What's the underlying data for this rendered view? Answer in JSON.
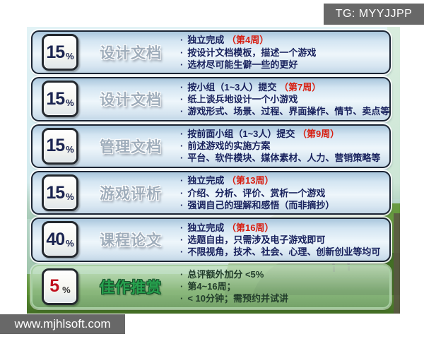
{
  "watermarks": {
    "top_right": "TG: MYYJJPP",
    "bottom_left": "www.mjhlsoft.com"
  },
  "bullet_char": "·",
  "colors": {
    "row_border": "#1b2433",
    "row_fill_top": "#a9c6dc",
    "row_fill_mid": "#eef6fb",
    "bullet_text": "#17205c",
    "highlight_red": "#d81e10",
    "percent_navy": "#1b2450",
    "percent_red": "#c1121f",
    "green_title": "#27a24e",
    "green_row_fill": "#b0d8b6",
    "watermark_bg": "#686868",
    "sky": "#d5ecf1",
    "grass": "#5f9238"
  },
  "rows": [
    {
      "percent": "15",
      "percent_unit": "%",
      "title": "设计文档",
      "theme": "blue",
      "bullets": [
        [
          {
            "t": "独立完成 "
          },
          {
            "t": "（第4周）",
            "red": true
          }
        ],
        [
          {
            "t": "按设计文档模板，描述一个游戏"
          }
        ],
        [
          {
            "t": "选材尽可能生僻一些的更好"
          }
        ]
      ]
    },
    {
      "percent": "15",
      "percent_unit": "%",
      "title": "设计文档",
      "theme": "blue",
      "bullets": [
        [
          {
            "t": "按小组（1~3人）提交 "
          },
          {
            "t": "（第7周）",
            "red": true
          }
        ],
        [
          {
            "t": "纸上谈兵地设计一个小游戏"
          }
        ],
        [
          {
            "t": "游戏形式、场景、过程、界面操作、情节、卖点等"
          }
        ]
      ]
    },
    {
      "percent": "15",
      "percent_unit": "%",
      "title": "管理文档",
      "theme": "blue",
      "bullets": [
        [
          {
            "t": "按前面小组（1~3人）提交 "
          },
          {
            "t": "（第9周）",
            "red": true
          }
        ],
        [
          {
            "t": "前述游戏的实施方案"
          }
        ],
        [
          {
            "t": "平台、软件模块、媒体素材、人力、营销策略等"
          }
        ]
      ]
    },
    {
      "percent": "15",
      "percent_unit": "%",
      "title": "游戏评析",
      "theme": "blue",
      "bullets": [
        [
          {
            "t": "独立完成 "
          },
          {
            "t": "（第13周）",
            "red": true
          }
        ],
        [
          {
            "t": "介绍、分析、评价、赏析一个游戏"
          }
        ],
        [
          {
            "t": "强调自己的理解和感悟（而非摘抄）"
          }
        ]
      ]
    },
    {
      "percent": "40",
      "percent_unit": "%",
      "title": "课程论文",
      "theme": "blue",
      "bullets": [
        [
          {
            "t": "独立完成 "
          },
          {
            "t": "（第16周）",
            "red": true
          }
        ],
        [
          {
            "t": "选题自由，只需涉及电子游戏即可"
          }
        ],
        [
          {
            "t": "不限视角，技术、社会、心理、创新创业等均可"
          }
        ]
      ]
    },
    {
      "percent": "5",
      "percent_unit": "%",
      "title": "佳作推赏",
      "theme": "green",
      "bullets": [
        [
          {
            "t": "总评额外加分 <5%"
          }
        ],
        [
          {
            "t": "第4~16周；"
          }
        ],
        [
          {
            "t": "< 10分钟；需预约并试讲"
          }
        ]
      ]
    }
  ]
}
